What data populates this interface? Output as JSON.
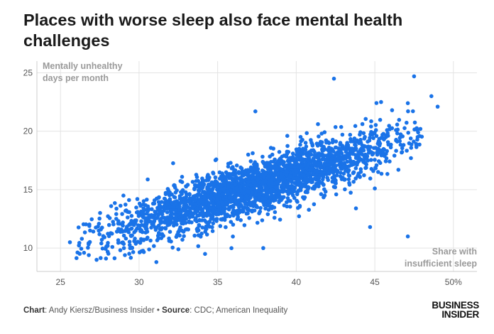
{
  "title": "Places with worse sleep also face mental health challenges",
  "footer": {
    "chart_label": "Chart",
    "chart_value": ": Andy Kiersz/Business Insider • ",
    "source_label": "Source",
    "source_value": ": CDC; American Inequality"
  },
  "logo": {
    "line1": "BUSINESS",
    "line2": "INSIDER"
  },
  "colors": {
    "points": "#1a73e8",
    "grid": "#e3e3e3",
    "axis": "#cccccc"
  },
  "chart_data": {
    "type": "scatter",
    "title": "Places with worse sleep also face mental health challenges",
    "ylabel_lines": [
      "Mentally unhealthy",
      "days per month"
    ],
    "xlabel_lines": [
      "Share with",
      "insufficient sleep"
    ],
    "xlim": [
      23.5,
      51.5
    ],
    "ylim": [
      8,
      26
    ],
    "xticks": [
      "25",
      "30",
      "35",
      "40",
      "45",
      "50%"
    ],
    "xtick_values": [
      25,
      30,
      35,
      40,
      45,
      50
    ],
    "yticks": [
      "10",
      "15",
      "20",
      "25"
    ],
    "ytick_values": [
      10,
      15,
      20,
      25
    ],
    "grid": true,
    "trend": {
      "slope": 0.415,
      "intercept": -0.25,
      "noise_sd": 1.15
    },
    "x_range_cloud": [
      26,
      48
    ],
    "n_points": 2600,
    "outliers": [
      {
        "x": 25.6,
        "y": 10.5
      },
      {
        "x": 26.5,
        "y": 9.6
      },
      {
        "x": 26.8,
        "y": 9.4
      },
      {
        "x": 27.3,
        "y": 9.0
      },
      {
        "x": 29.1,
        "y": 9.4
      },
      {
        "x": 31.1,
        "y": 8.8
      },
      {
        "x": 37.4,
        "y": 21.7
      },
      {
        "x": 42.4,
        "y": 24.5
      },
      {
        "x": 47.5,
        "y": 24.7
      },
      {
        "x": 48.6,
        "y": 23.0
      },
      {
        "x": 49.0,
        "y": 22.1
      },
      {
        "x": 47.9,
        "y": 20.2
      },
      {
        "x": 47.7,
        "y": 20.1
      },
      {
        "x": 47.1,
        "y": 11.0
      },
      {
        "x": 44.7,
        "y": 11.8
      },
      {
        "x": 45.4,
        "y": 22.5
      },
      {
        "x": 47.1,
        "y": 22.4
      },
      {
        "x": 46.1,
        "y": 21.8
      },
      {
        "x": 37.9,
        "y": 10.0
      },
      {
        "x": 34.2,
        "y": 9.5
      },
      {
        "x": 43.8,
        "y": 13.4
      },
      {
        "x": 45.0,
        "y": 15.1
      },
      {
        "x": 46.5,
        "y": 16.7
      },
      {
        "x": 47.3,
        "y": 17.7
      },
      {
        "x": 27.6,
        "y": 10.4
      },
      {
        "x": 28.3,
        "y": 10.1
      },
      {
        "x": 32.5,
        "y": 9.9
      }
    ]
  }
}
